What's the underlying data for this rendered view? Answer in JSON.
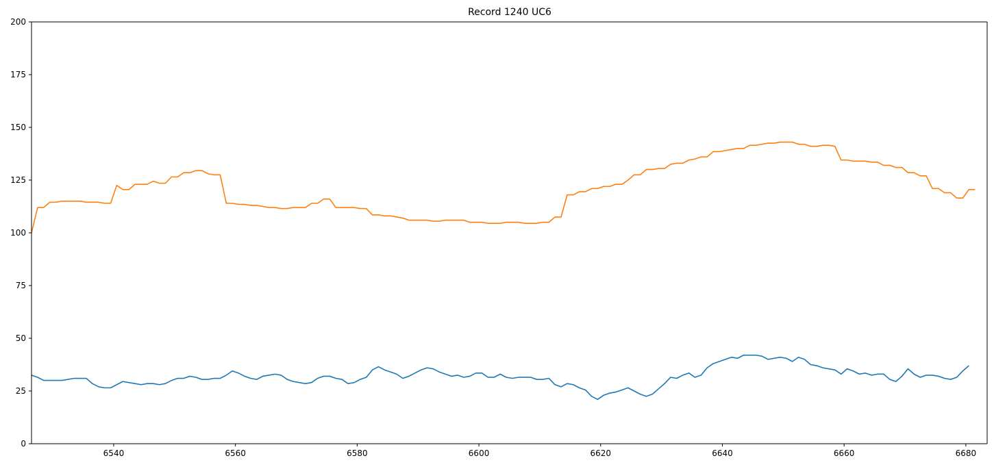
{
  "chart_data": {
    "type": "line",
    "title": "Record 1240 UC6",
    "xlabel": "",
    "ylabel": "",
    "xlim": [
      6526.5,
      6683.5
    ],
    "ylim": [
      0,
      200
    ],
    "xticks": [
      6540,
      6560,
      6580,
      6600,
      6620,
      6640,
      6660,
      6680
    ],
    "yticks": [
      0,
      25,
      50,
      75,
      100,
      125,
      150,
      175,
      200
    ],
    "grid": false,
    "legend": "none",
    "colors": [
      "#1f77b4",
      "#ff7f0e"
    ],
    "x_start": 6526.5,
    "x_step": 1,
    "series": [
      {
        "values": [
          32.5,
          31.5,
          30,
          30,
          30,
          30,
          30.5,
          31,
          31,
          31,
          28.5,
          27,
          26.5,
          26.5,
          28,
          29.5,
          29,
          28.5,
          28,
          28.5,
          28.5,
          28,
          28.5,
          30,
          31,
          31,
          32,
          31.5,
          30.5,
          30.5,
          31,
          31,
          32.5,
          34.5,
          33.5,
          32,
          31,
          30.5,
          32,
          32.5,
          33,
          32.5,
          30.5,
          29.5,
          29,
          28.5,
          29,
          31,
          32,
          32,
          31,
          30.5,
          28.5,
          29,
          30.5,
          31.5,
          35,
          36.5,
          35,
          34,
          33,
          31,
          32,
          33.5,
          35,
          36,
          35.5,
          34,
          33,
          32,
          32.5,
          31.5,
          32,
          33.5,
          33.5,
          31.5,
          31.5,
          33,
          31.5,
          31,
          31.5,
          31.5,
          31.5,
          30.5,
          30.5,
          31,
          28,
          27,
          28.5,
          28,
          26.5,
          25.5,
          22.5,
          21,
          23,
          24,
          24.5,
          25.5,
          26.5,
          25,
          23.5,
          22.5,
          23.5,
          26,
          28.5,
          31.5,
          31,
          32.5,
          33.5,
          31.5,
          32.5,
          36,
          38,
          39,
          40,
          41,
          40.5,
          42,
          42,
          42,
          41.5,
          40,
          40.5,
          41,
          40.5,
          39,
          41,
          40,
          37.5,
          37,
          36,
          35.5,
          35,
          33,
          35.5,
          34.5,
          33,
          33.5,
          32.5,
          33,
          33,
          30.5,
          29.5,
          32,
          35.5,
          33,
          31.5,
          32.5,
          32.5,
          32,
          31,
          30.5,
          31.5,
          34.5,
          37
        ]
      },
      {
        "values": [
          100,
          112,
          112,
          114.5,
          114.5,
          115,
          115,
          115,
          115,
          114.5,
          114.5,
          114.5,
          114,
          114,
          122.5,
          120.5,
          120.5,
          123,
          123,
          123,
          124.5,
          123.5,
          123.5,
          126.5,
          126.5,
          128.5,
          128.5,
          129.5,
          129.5,
          128,
          127.5,
          127.5,
          114,
          114,
          113.5,
          113.5,
          113,
          113,
          112.5,
          112,
          112,
          111.5,
          111.5,
          112,
          112,
          112,
          114,
          114,
          116,
          116,
          112,
          112,
          112,
          112,
          111.5,
          111.5,
          108.5,
          108.5,
          108,
          108,
          107.5,
          107,
          106,
          106,
          106,
          106,
          105.5,
          105.5,
          106,
          106,
          106,
          106,
          105,
          105,
          105,
          104.5,
          104.5,
          104.5,
          105,
          105,
          105,
          104.5,
          104.5,
          104.5,
          105,
          105,
          107.5,
          107.5,
          118,
          118,
          119.5,
          119.5,
          121,
          121,
          122,
          122,
          123,
          123,
          125,
          127.5,
          127.5,
          130,
          130,
          130.5,
          130.5,
          132.5,
          133,
          133,
          134.5,
          135,
          136,
          136,
          138.5,
          138.5,
          139,
          139.5,
          140,
          140,
          141.5,
          141.5,
          142,
          142.5,
          142.5,
          143,
          143,
          143,
          142,
          142,
          141,
          141,
          141.5,
          141.5,
          141,
          134.5,
          134.5,
          134,
          134,
          134,
          133.5,
          133.5,
          132,
          132,
          131,
          131,
          128.5,
          128.5,
          127,
          127,
          121,
          121,
          119,
          119,
          116.5,
          116.5,
          120.5,
          120.5
        ]
      }
    ]
  }
}
